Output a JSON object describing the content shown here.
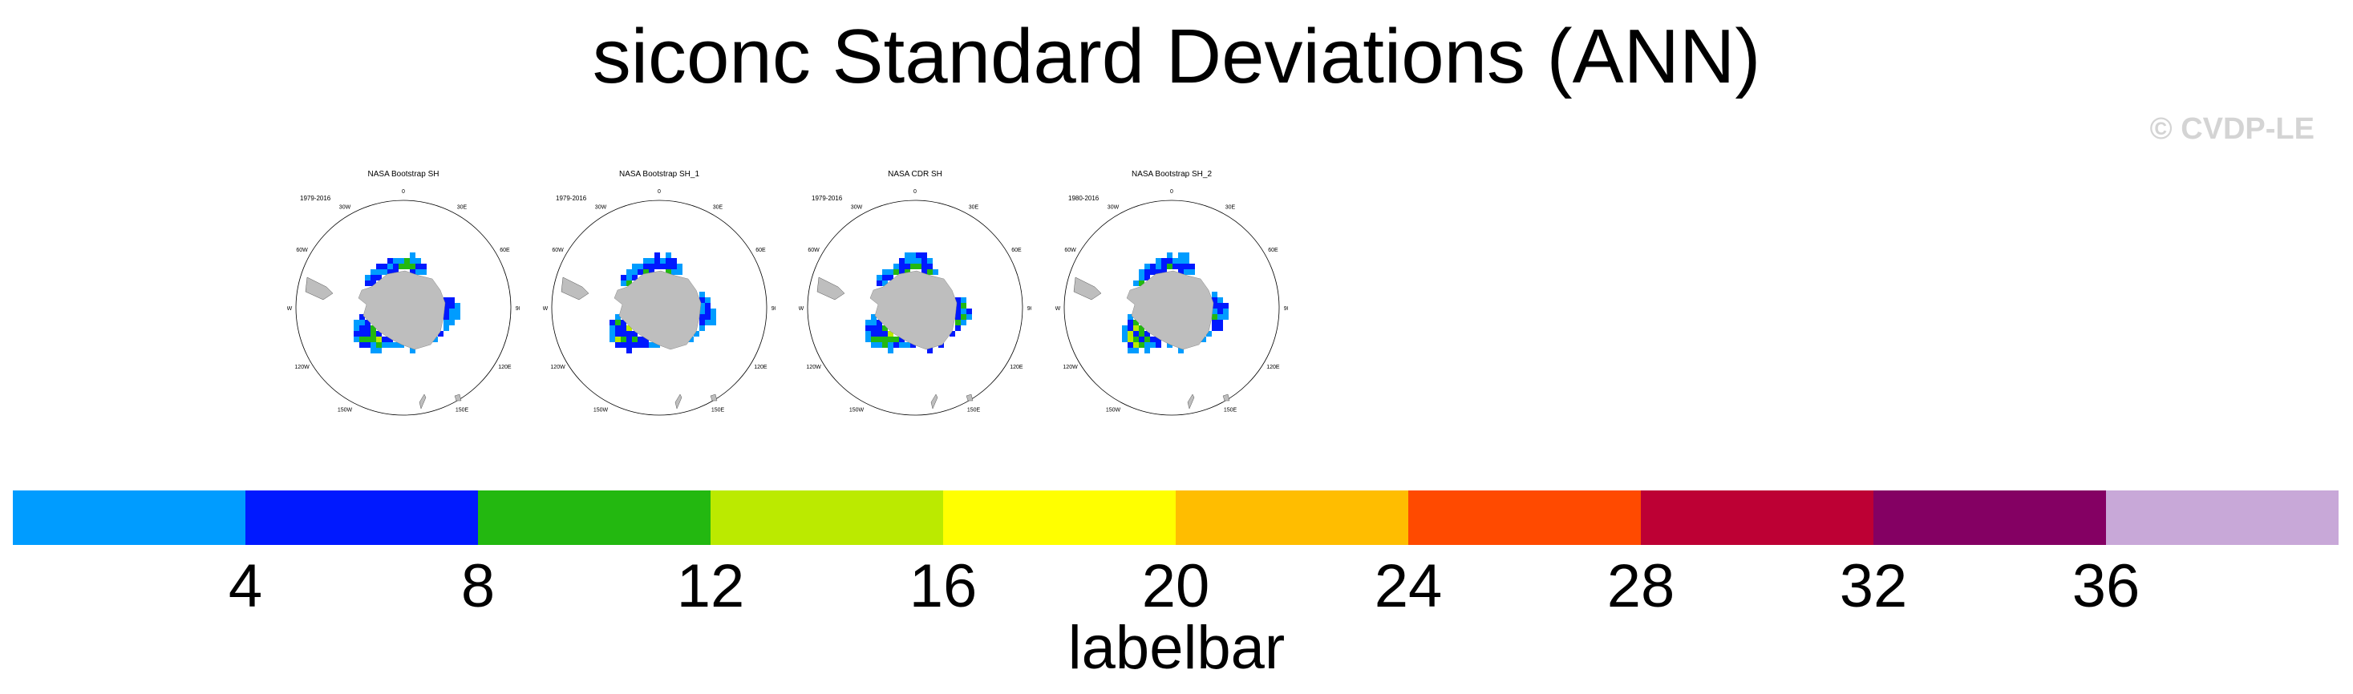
{
  "title": "siconc Standard Deviations (ANN)",
  "watermark": "© CVDP-LE",
  "colorbar": {
    "label": "labelbar",
    "colors": [
      "#009cff",
      "#0019ff",
      "#23b810",
      "#bbea00",
      "#ffff00",
      "#ffbd00",
      "#ff4a00",
      "#bd0034",
      "#840063",
      "#c8a8d8"
    ],
    "ticks": [
      "4",
      "8",
      "12",
      "16",
      "20",
      "24",
      "28",
      "32",
      "36"
    ]
  },
  "land_color": "#bebebe",
  "panels": [
    {
      "title": "NASA Bootstrap SH",
      "period": "1979-2016"
    },
    {
      "title": "NASA Bootstrap SH_1",
      "period": "1979-2016"
    },
    {
      "title": "NASA CDR SH",
      "period": "1979-2016"
    },
    {
      "title": "NASA Bootstrap SH_2",
      "period": "1980-2016"
    }
  ],
  "lon_labels": [
    "0",
    "30E",
    "60E",
    "90E",
    "120E",
    "150E",
    "180",
    "150W",
    "120W",
    "90W",
    "60W",
    "30W"
  ]
}
